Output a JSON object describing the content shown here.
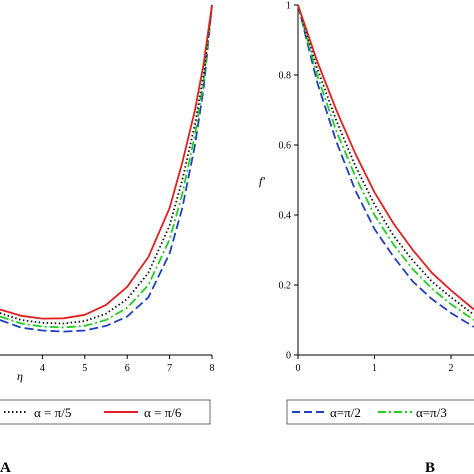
{
  "chart_data": [
    {
      "type": "line",
      "panel_label": "A",
      "xlabel": "η",
      "ylabel": "",
      "xlim": [
        3,
        8
      ],
      "ylim": [
        0,
        1
      ],
      "xticks": [
        "4",
        "5",
        "6",
        "7",
        "8"
      ],
      "yticks": [],
      "series": [
        {
          "name": "",
          "color": "#1f3fbf",
          "dash": "dashed",
          "x": [
            3,
            3.5,
            4,
            4.5,
            5,
            5.5,
            6,
            6.5,
            7,
            7.3,
            7.6,
            7.8,
            8
          ],
          "y": [
            0.1,
            0.078,
            0.07,
            0.067,
            0.07,
            0.083,
            0.11,
            0.165,
            0.29,
            0.42,
            0.6,
            0.76,
            1.0
          ]
        },
        {
          "name": "",
          "color": "#22cc22",
          "dash": "dashdot",
          "x": [
            3,
            3.5,
            4,
            4.5,
            5,
            5.5,
            6,
            6.5,
            7,
            7.3,
            7.6,
            7.8,
            8
          ],
          "y": [
            0.11,
            0.09,
            0.081,
            0.079,
            0.083,
            0.1,
            0.135,
            0.2,
            0.33,
            0.46,
            0.63,
            0.78,
            1.0
          ]
        },
        {
          "name": "α = π/5",
          "color": "#111111",
          "dash": "dotted",
          "x": [
            3,
            3.5,
            4,
            4.5,
            5,
            5.5,
            6,
            6.5,
            7,
            7.3,
            7.6,
            7.8,
            8
          ],
          "y": [
            0.12,
            0.1,
            0.092,
            0.09,
            0.097,
            0.118,
            0.16,
            0.235,
            0.37,
            0.5,
            0.66,
            0.8,
            1.0
          ]
        },
        {
          "name": "α = π/6",
          "color": "#e02020",
          "dash": "solid",
          "x": [
            3,
            3.5,
            4,
            4.5,
            5,
            5.5,
            6,
            6.5,
            7,
            7.3,
            7.6,
            7.8,
            8
          ],
          "y": [
            0.13,
            0.112,
            0.104,
            0.105,
            0.115,
            0.143,
            0.195,
            0.28,
            0.42,
            0.55,
            0.7,
            0.83,
            1.0
          ]
        }
      ]
    },
    {
      "type": "line",
      "panel_label": "B",
      "xlabel": "",
      "ylabel": "f′",
      "xlim": [
        0,
        2.3
      ],
      "ylim": [
        0,
        1
      ],
      "xticks": [
        "0",
        "1",
        "2"
      ],
      "yticks": [
        "0",
        "0.2",
        "0.4",
        "0.6",
        "0.8",
        "1"
      ],
      "series": [
        {
          "name": "α=π/2",
          "color": "#1f3fbf",
          "dash": "dashed",
          "x": [
            0,
            0.25,
            0.5,
            0.75,
            1,
            1.25,
            1.5,
            1.75,
            2,
            2.3
          ],
          "y": [
            1,
            0.78,
            0.61,
            0.47,
            0.36,
            0.28,
            0.21,
            0.16,
            0.12,
            0.08
          ]
        },
        {
          "name": "α=π/3",
          "color": "#22cc22",
          "dash": "dashdot",
          "x": [
            0,
            0.25,
            0.5,
            0.75,
            1,
            1.25,
            1.5,
            1.75,
            2,
            2.3
          ],
          "y": [
            1,
            0.8,
            0.64,
            0.51,
            0.4,
            0.315,
            0.245,
            0.19,
            0.145,
            0.1
          ]
        },
        {
          "name": "",
          "color": "#111111",
          "dash": "dotted",
          "x": [
            0,
            0.25,
            0.5,
            0.75,
            1,
            1.25,
            1.5,
            1.75,
            2,
            2.3
          ],
          "y": [
            1,
            0.82,
            0.67,
            0.54,
            0.43,
            0.34,
            0.27,
            0.21,
            0.165,
            0.115
          ]
        },
        {
          "name": "",
          "color": "#e02020",
          "dash": "solid",
          "x": [
            0,
            0.25,
            0.5,
            0.75,
            1,
            1.25,
            1.5,
            1.75,
            2,
            2.3
          ],
          "y": [
            1,
            0.84,
            0.7,
            0.575,
            0.465,
            0.375,
            0.3,
            0.235,
            0.185,
            0.13
          ]
        }
      ]
    }
  ]
}
